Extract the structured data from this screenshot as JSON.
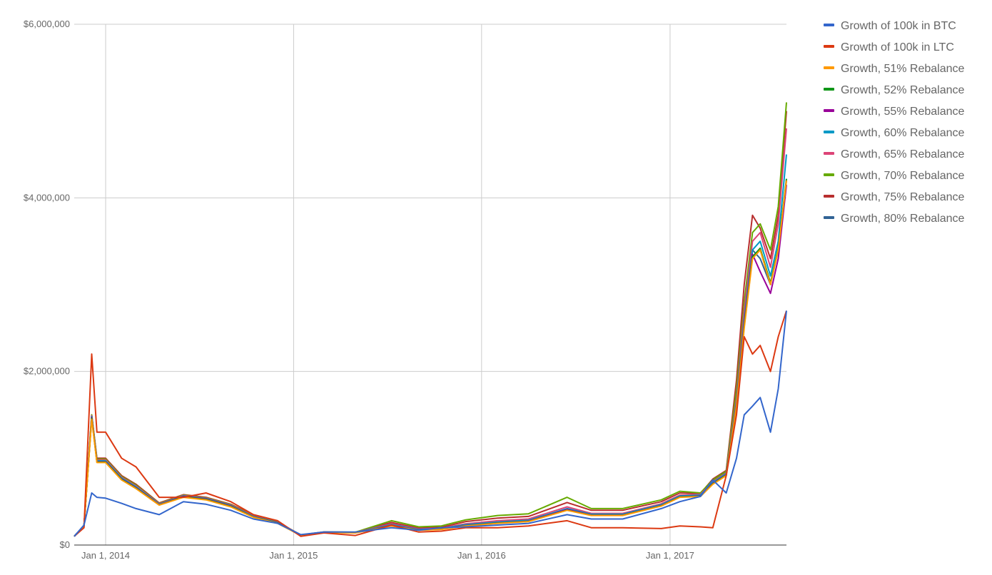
{
  "chart_data": {
    "type": "line",
    "title": "",
    "xlabel": "",
    "ylabel": "",
    "x_range": [
      "2013-11-01",
      "2017-08-15"
    ],
    "ylim": [
      0,
      6000000
    ],
    "y_ticks": [
      {
        "value": 0,
        "label": "$0"
      },
      {
        "value": 2000000,
        "label": "$2,000,000"
      },
      {
        "value": 4000000,
        "label": "$4,000,000"
      },
      {
        "value": 6000000,
        "label": "$6,000,000"
      }
    ],
    "x_ticks": [
      {
        "value": "2014-01-01",
        "label": "Jan 1, 2014"
      },
      {
        "value": "2015-01-01",
        "label": "Jan 1, 2015"
      },
      {
        "value": "2016-01-01",
        "label": "Jan 1, 2016"
      },
      {
        "value": "2017-01-01",
        "label": "Jan 1, 2017"
      }
    ],
    "grid": true,
    "legend_position": "right",
    "x": [
      "2013-11-01",
      "2013-11-20",
      "2013-12-05",
      "2013-12-15",
      "2014-01-01",
      "2014-02-01",
      "2014-03-01",
      "2014-04-15",
      "2014-06-01",
      "2014-07-15",
      "2014-09-01",
      "2014-10-15",
      "2014-12-01",
      "2015-01-15",
      "2015-03-01",
      "2015-05-01",
      "2015-07-10",
      "2015-09-01",
      "2015-10-15",
      "2015-12-01",
      "2016-02-01",
      "2016-04-01",
      "2016-06-15",
      "2016-08-01",
      "2016-10-01",
      "2016-12-15",
      "2017-01-20",
      "2017-03-01",
      "2017-03-25",
      "2017-04-20",
      "2017-05-10",
      "2017-05-25",
      "2017-06-10",
      "2017-06-25",
      "2017-07-15",
      "2017-07-30",
      "2017-08-15"
    ],
    "series": [
      {
        "name": "Growth of 100k in BTC",
        "color": "#3366cc",
        "values": [
          100000,
          230000,
          600000,
          550000,
          540000,
          480000,
          420000,
          350000,
          500000,
          470000,
          400000,
          300000,
          250000,
          120000,
          150000,
          150000,
          200000,
          170000,
          200000,
          210000,
          230000,
          250000,
          350000,
          300000,
          300000,
          420000,
          500000,
          560000,
          750000,
          600000,
          1000000,
          1500000,
          1600000,
          1700000,
          1300000,
          1800000,
          2700000
        ]
      },
      {
        "name": "Growth of 100k in LTC",
        "color": "#dc3912",
        "values": [
          100000,
          200000,
          2200000,
          1300000,
          1300000,
          1000000,
          900000,
          550000,
          550000,
          600000,
          500000,
          350000,
          280000,
          100000,
          140000,
          110000,
          230000,
          150000,
          160000,
          200000,
          200000,
          220000,
          280000,
          200000,
          200000,
          190000,
          220000,
          210000,
          200000,
          800000,
          1500000,
          2400000,
          2200000,
          2300000,
          2000000,
          2400000,
          2700000
        ]
      },
      {
        "name": "Growth, 51% Rebalance",
        "color": "#ff9900",
        "values": [
          100000,
          220000,
          1450000,
          950000,
          950000,
          750000,
          650000,
          460000,
          550000,
          520000,
          440000,
          320000,
          250000,
          110000,
          145000,
          140000,
          220000,
          170000,
          180000,
          220000,
          250000,
          270000,
          400000,
          340000,
          340000,
          450000,
          550000,
          560000,
          700000,
          800000,
          1600000,
          2500000,
          3300000,
          3400000,
          3000000,
          3400000,
          4200000
        ]
      },
      {
        "name": "Growth, 52% Rebalance",
        "color": "#109618",
        "values": [
          100000,
          220000,
          1460000,
          955000,
          955000,
          755000,
          655000,
          462000,
          555000,
          525000,
          445000,
          322000,
          252000,
          111000,
          146000,
          141000,
          222000,
          172000,
          182000,
          222000,
          252000,
          272000,
          402000,
          342000,
          342000,
          452000,
          552000,
          562000,
          705000,
          805000,
          1610000,
          2520000,
          3320000,
          3420000,
          3020000,
          3420000,
          4220000
        ]
      },
      {
        "name": "Growth, 55% Rebalance",
        "color": "#990099",
        "values": [
          100000,
          220000,
          1470000,
          960000,
          960000,
          760000,
          660000,
          465000,
          560000,
          530000,
          450000,
          325000,
          255000,
          112000,
          147000,
          143000,
          225000,
          175000,
          185000,
          225000,
          255000,
          275000,
          410000,
          345000,
          345000,
          455000,
          555000,
          565000,
          710000,
          810000,
          1620000,
          2550000,
          3350000,
          3150000,
          2900000,
          3300000,
          4150000
        ]
      },
      {
        "name": "Growth, 60% Rebalance",
        "color": "#0099c6",
        "values": [
          100000,
          220000,
          1480000,
          970000,
          970000,
          770000,
          670000,
          470000,
          565000,
          535000,
          455000,
          330000,
          258000,
          113000,
          148000,
          145000,
          235000,
          180000,
          190000,
          235000,
          265000,
          285000,
          420000,
          355000,
          355000,
          465000,
          565000,
          575000,
          720000,
          820000,
          1650000,
          2600000,
          3400000,
          3500000,
          3100000,
          3500000,
          4500000
        ]
      },
      {
        "name": "Growth, 65% Rebalance",
        "color": "#dd4477",
        "values": [
          100000,
          220000,
          1490000,
          980000,
          980000,
          780000,
          680000,
          475000,
          570000,
          540000,
          460000,
          335000,
          260000,
          114000,
          149000,
          146000,
          245000,
          185000,
          195000,
          245000,
          280000,
          300000,
          440000,
          365000,
          365000,
          475000,
          575000,
          585000,
          730000,
          830000,
          1700000,
          2700000,
          3500000,
          3600000,
          3200000,
          3700000,
          4800000
        ]
      },
      {
        "name": "Growth, 70% Rebalance",
        "color": "#66aa00",
        "values": [
          100000,
          220000,
          1500000,
          990000,
          990000,
          790000,
          690000,
          480000,
          575000,
          545000,
          465000,
          340000,
          262000,
          115000,
          150000,
          148000,
          280000,
          210000,
          220000,
          290000,
          340000,
          360000,
          550000,
          420000,
          420000,
          520000,
          620000,
          600000,
          750000,
          850000,
          1800000,
          2800000,
          3600000,
          3700000,
          3400000,
          3900000,
          5100000
        ]
      },
      {
        "name": "Growth, 75% Rebalance",
        "color": "#b82e2e",
        "values": [
          100000,
          220000,
          1500000,
          1000000,
          1000000,
          800000,
          700000,
          485000,
          580000,
          550000,
          470000,
          345000,
          265000,
          116000,
          151000,
          147000,
          260000,
          195000,
          205000,
          270000,
          310000,
          330000,
          490000,
          400000,
          400000,
          500000,
          600000,
          595000,
          760000,
          860000,
          1900000,
          3000000,
          3800000,
          3650000,
          3300000,
          3800000,
          5000000
        ]
      },
      {
        "name": "Growth, 80% Rebalance",
        "color": "#316395",
        "values": [
          100000,
          220000,
          1480000,
          960000,
          960000,
          760000,
          660000,
          470000,
          560000,
          530000,
          450000,
          330000,
          255000,
          112000,
          147000,
          143000,
          235000,
          178000,
          188000,
          230000,
          260000,
          280000,
          410000,
          350000,
          350000,
          460000,
          560000,
          570000,
          740000,
          840000,
          1700000,
          2700000,
          3400000,
          3300000,
          3000000,
          3400000,
          4200000
        ]
      }
    ]
  }
}
